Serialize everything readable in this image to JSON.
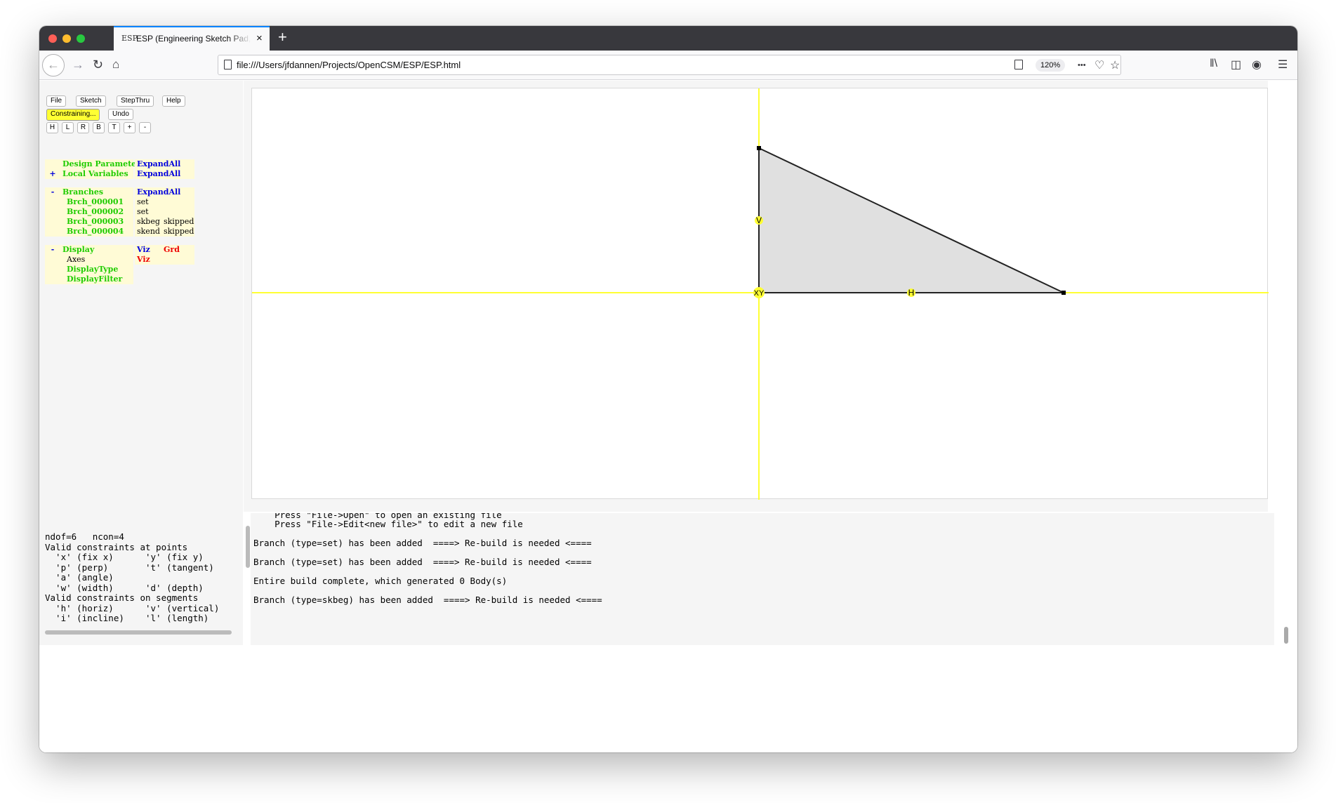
{
  "browser": {
    "tab_icon": "ESP",
    "tab_title": "ESP (Engineering Sketch Pad, V",
    "tab_close": "×",
    "new_tab": "+",
    "url": "file:///Users/jfdannen/Projects/OpenCSM/ESP/ESP.html",
    "zoom": "120%",
    "more_actions": "•••"
  },
  "toolbar": {
    "file": "File",
    "sketch": "Sketch",
    "stepthru": "StepThru",
    "help": "Help",
    "mode": "Constraining...",
    "undo": "Undo",
    "view_buttons": [
      "H",
      "L",
      "R",
      "B",
      "T",
      "+",
      "-"
    ]
  },
  "tree": {
    "design_parameters": {
      "label": "Design Parameters",
      "action": "ExpandAll"
    },
    "local_variables": {
      "toggle": "+",
      "label": "Local Variables",
      "action": "ExpandAll"
    },
    "branches": {
      "toggle": "-",
      "label": "Branches",
      "action": "ExpandAll",
      "items": [
        {
          "name": "Brch_000001",
          "type": "set",
          "status": ""
        },
        {
          "name": "Brch_000002",
          "type": "set",
          "status": ""
        },
        {
          "name": "Brch_000003",
          "type": "skbeg",
          "status": "skipped"
        },
        {
          "name": "Brch_000004",
          "type": "skend",
          "status": "skipped"
        }
      ]
    },
    "display": {
      "toggle": "-",
      "label": "Display",
      "viz": "Viz",
      "grd": "Grd",
      "axes": {
        "label": "Axes",
        "viz": "Viz"
      },
      "display_type": "DisplayType",
      "display_filter": "DisplayFilter"
    }
  },
  "sketch": {
    "labels": {
      "v": "V",
      "xy": "XY",
      "h": "H"
    },
    "colors": {
      "axis": "#ffff33",
      "fill": "#e0e0e0",
      "stroke": "#222222"
    }
  },
  "constraints_panel": {
    "lines": [
      "ndof=6   ncon=4",
      "Valid constraints at points",
      "  'x' (fix x)      'y' (fix y)",
      "  'p' (perp)       't' (tangent)",
      "  'a' (angle)",
      "  'w' (width)      'd' (depth)",
      "Valid constraints on segments",
      "  'h' (horiz)      'v' (vertical)",
      "  'i' (incline)    'l' (length)"
    ]
  },
  "messages": {
    "lines": [
      "    Press \"File->Open\" to open an existing file",
      "    Press \"File->Edit<new file>\" to edit a new file",
      "",
      "Branch (type=set) has been added  ====> Re-build is needed <====",
      "",
      "Branch (type=set) has been added  ====> Re-build is needed <====",
      "",
      "Entire build complete, which generated 0 Body(s)",
      "",
      "Branch (type=skbeg) has been added  ====> Re-build is needed <===="
    ]
  }
}
